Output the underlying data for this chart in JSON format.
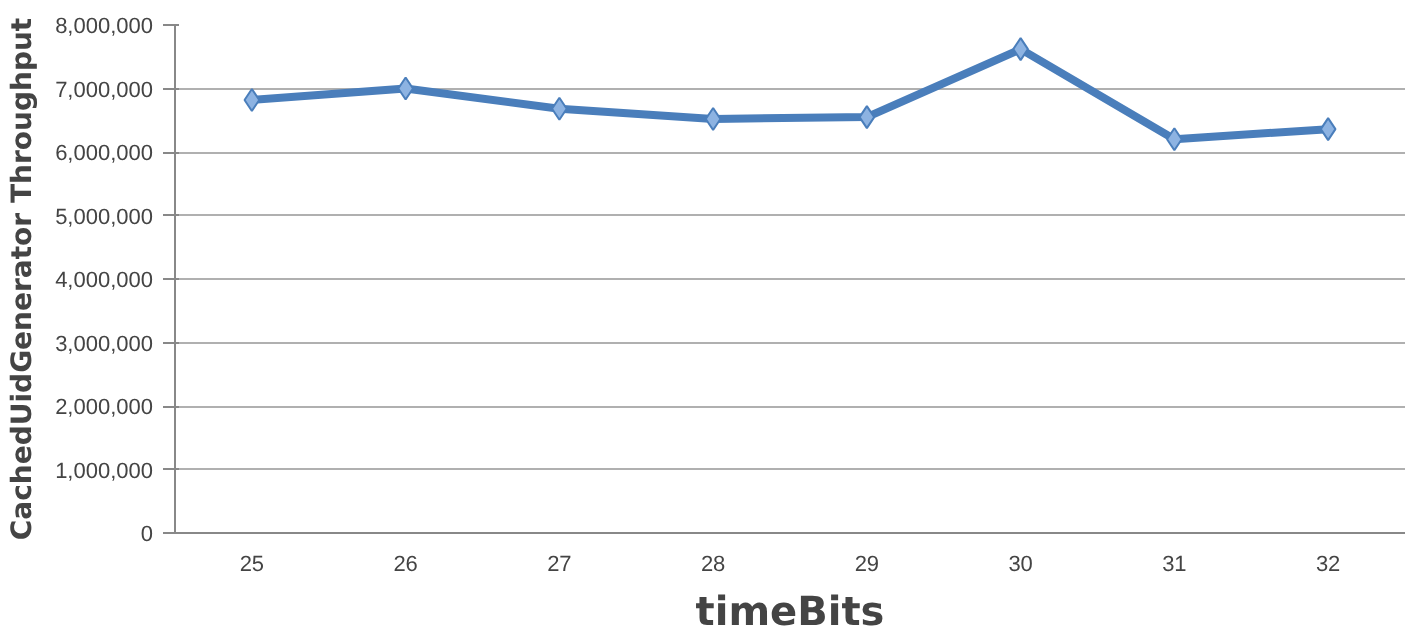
{
  "chart_data": {
    "type": "line",
    "xlabel": "timeBits",
    "ylabel": "CachedUidGenerator Throughput",
    "categories": [
      "25",
      "26",
      "27",
      "28",
      "29",
      "30",
      "31",
      "32"
    ],
    "series": [
      {
        "color": "#4a7ebb",
        "values": [
          6820000,
          7000000,
          6680000,
          6520000,
          6550000,
          7620000,
          6200000,
          6360000
        ]
      }
    ],
    "ylim": [
      0,
      8000000
    ],
    "yticks": [
      {
        "value": 0,
        "label": "0"
      },
      {
        "value": 1000000,
        "label": "1,000,000"
      },
      {
        "value": 2000000,
        "label": "2,000,000"
      },
      {
        "value": 3000000,
        "label": "3,000,000"
      },
      {
        "value": 4000000,
        "label": "4,000,000"
      },
      {
        "value": 5000000,
        "label": "5,000,000"
      },
      {
        "value": 6000000,
        "label": "6,000,000"
      },
      {
        "value": 7000000,
        "label": "7,000,000"
      },
      {
        "value": 8000000,
        "label": "8,000,000"
      }
    ],
    "grid": "y",
    "marker": "diamond",
    "line_style": "solid"
  }
}
